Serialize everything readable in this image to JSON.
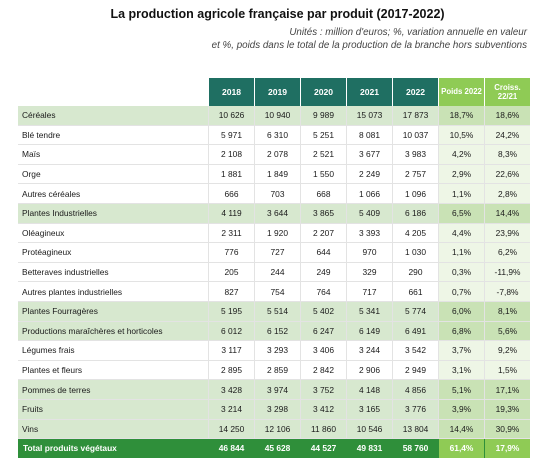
{
  "title": "La production agricole française par produit (2017-2022)",
  "subtitle_line1": "Unités : million d'euros; %, variation annuelle en valeur",
  "subtitle_line2": "et %, poids dans le total de la production de la branche hors subventions",
  "columns": {
    "years": [
      "2018",
      "2019",
      "2020",
      "2021",
      "2022"
    ],
    "poids": "Poids 2022",
    "crois": "Croiss. 22/21"
  },
  "rows": [
    {
      "label": "Céréales",
      "values": [
        "10 626",
        "10 940",
        "9 989",
        "15 073",
        "17 873"
      ],
      "poids": "18,7%",
      "crois": "18,6%",
      "highlight": true
    },
    {
      "label": "Blé tendre",
      "values": [
        "5 971",
        "6 310",
        "5 251",
        "8 081",
        "10 037"
      ],
      "poids": "10,5%",
      "crois": "24,2%",
      "highlight": false
    },
    {
      "label": "Maïs",
      "values": [
        "2 108",
        "2 078",
        "2 521",
        "3 677",
        "3 983"
      ],
      "poids": "4,2%",
      "crois": "8,3%",
      "highlight": false
    },
    {
      "label": "Orge",
      "values": [
        "1 881",
        "1 849",
        "1 550",
        "2 249",
        "2 757"
      ],
      "poids": "2,9%",
      "crois": "22,6%",
      "highlight": false
    },
    {
      "label": "Autres céréales",
      "values": [
        "666",
        "703",
        "668",
        "1 066",
        "1 096"
      ],
      "poids": "1,1%",
      "crois": "2,8%",
      "highlight": false
    },
    {
      "label": "Plantes Industrielles",
      "values": [
        "4 119",
        "3 644",
        "3 865",
        "5 409",
        "6 186"
      ],
      "poids": "6,5%",
      "crois": "14,4%",
      "highlight": true
    },
    {
      "label": "Oléagineux",
      "values": [
        "2 311",
        "1 920",
        "2 207",
        "3 393",
        "4 205"
      ],
      "poids": "4,4%",
      "crois": "23,9%",
      "highlight": false
    },
    {
      "label": "Protéagineux",
      "values": [
        "776",
        "727",
        "644",
        "970",
        "1 030"
      ],
      "poids": "1,1%",
      "crois": "6,2%",
      "highlight": false
    },
    {
      "label": "Betteraves industrielles",
      "values": [
        "205",
        "244",
        "249",
        "329",
        "290"
      ],
      "poids": "0,3%",
      "crois": "-11,9%",
      "highlight": false
    },
    {
      "label": "Autres plantes industrielles",
      "values": [
        "827",
        "754",
        "764",
        "717",
        "661"
      ],
      "poids": "0,7%",
      "crois": "-7,8%",
      "highlight": false
    },
    {
      "label": "Plantes Fourragères",
      "values": [
        "5 195",
        "5 514",
        "5 402",
        "5 341",
        "5 774"
      ],
      "poids": "6,0%",
      "crois": "8,1%",
      "highlight": true
    },
    {
      "label": "Productions maraîchères et horticoles",
      "values": [
        "6 012",
        "6 152",
        "6 247",
        "6 149",
        "6 491"
      ],
      "poids": "6,8%",
      "crois": "5,6%",
      "highlight": true
    },
    {
      "label": "Légumes frais",
      "values": [
        "3 117",
        "3 293",
        "3 406",
        "3 244",
        "3 542"
      ],
      "poids": "3,7%",
      "crois": "9,2%",
      "highlight": false
    },
    {
      "label": "Plantes et fleurs",
      "values": [
        "2 895",
        "2 859",
        "2 842",
        "2 906",
        "2 949"
      ],
      "poids": "3,1%",
      "crois": "1,5%",
      "highlight": false
    },
    {
      "label": "Pommes de terres",
      "values": [
        "3 428",
        "3 974",
        "3 752",
        "4 148",
        "4 856"
      ],
      "poids": "5,1%",
      "crois": "17,1%",
      "highlight": true
    },
    {
      "label": "Fruits",
      "values": [
        "3 214",
        "3 298",
        "3 412",
        "3 165",
        "3 776"
      ],
      "poids": "3,9%",
      "crois": "19,3%",
      "highlight": true
    },
    {
      "label": "Vins",
      "values": [
        "14 250",
        "12 106",
        "11 860",
        "10 546",
        "13 804"
      ],
      "poids": "14,4%",
      "crois": "30,9%",
      "highlight": true
    }
  ],
  "total": {
    "label": "Total produits végétaux",
    "values": [
      "46 844",
      "45 628",
      "44 527",
      "49 831",
      "58 760"
    ],
    "poids": "61,4%",
    "crois": "17,9%"
  }
}
